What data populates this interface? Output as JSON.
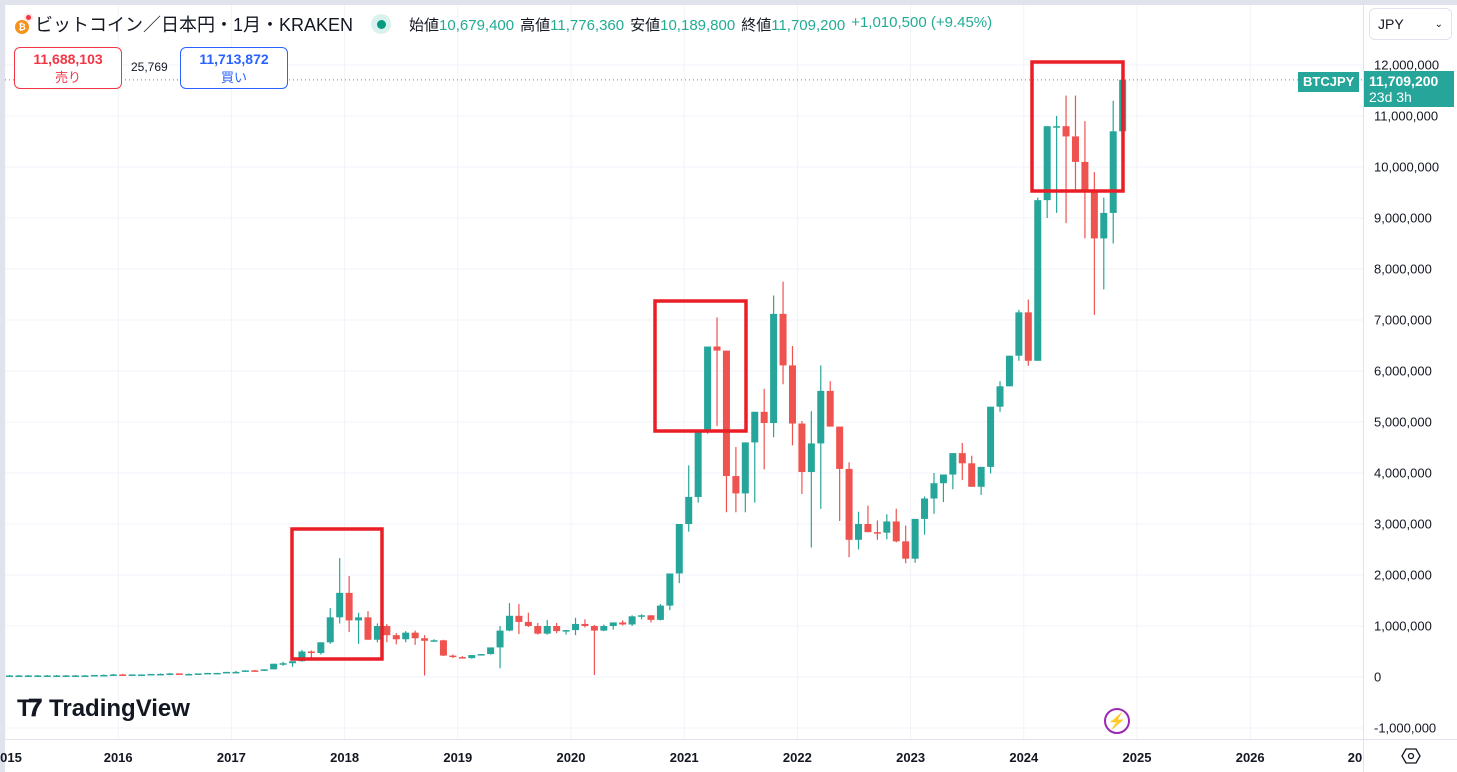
{
  "header": {
    "symbol_title": "ビットコイン／日本円・1月・KRAKEN",
    "market_status": "open",
    "ohlc": {
      "open_label": "始値",
      "open": "10,679,400",
      "high_label": "高値",
      "high": "11,776,360",
      "low_label": "安値",
      "low": "10,189,800",
      "close_label": "終値",
      "close": "11,709,200",
      "change": "+1,010,500 (+9.45%)"
    }
  },
  "trade": {
    "sell_price": "11,688,103",
    "sell_label": "売り",
    "spread": "25,769",
    "buy_price": "11,713,872",
    "buy_label": "買い"
  },
  "price_axis": {
    "currency": "JPY",
    "ticks": [
      "12,000,000",
      "11,000,000",
      "10,000,000",
      "9,000,000",
      "8,000,000",
      "7,000,000",
      "6,000,000",
      "5,000,000",
      "4,000,000",
      "3,000,000",
      "2,000,000",
      "1,000,000",
      "0",
      "-1,000,000"
    ],
    "last_price": "11,709,200",
    "countdown": "23d 3h",
    "symbol_tag": "BTCJPY"
  },
  "time_axis": {
    "ticks": [
      "015",
      "2016",
      "2017",
      "2018",
      "2019",
      "2020",
      "2021",
      "2022",
      "2023",
      "2024",
      "2025",
      "2026",
      "20"
    ]
  },
  "branding": {
    "logo_text": "TradingView"
  },
  "colors": {
    "up": "#26a69a",
    "down": "#ef5350",
    "highlight_box": "#e91e26",
    "accent_purple": "#9c27b0"
  },
  "chart_data": {
    "type": "candlestick",
    "title": "ビットコイン／日本円・1月・KRAKEN (BTCJPY monthly)",
    "xlabel": "",
    "ylabel": "JPY",
    "ylim": [
      -1000000,
      12500000
    ],
    "grid": true,
    "unit_note": "OHLC values in millions of JPY, estimated from pixels",
    "start": "2015-01",
    "candles": [
      [
        0.03,
        0.04,
        0.02,
        0.03
      ],
      [
        0.03,
        0.04,
        0.02,
        0.03
      ],
      [
        0.03,
        0.04,
        0.02,
        0.03
      ],
      [
        0.03,
        0.04,
        0.02,
        0.03
      ],
      [
        0.03,
        0.04,
        0.02,
        0.03
      ],
      [
        0.03,
        0.04,
        0.02,
        0.03
      ],
      [
        0.03,
        0.04,
        0.02,
        0.03
      ],
      [
        0.03,
        0.04,
        0.02,
        0.03
      ],
      [
        0.03,
        0.04,
        0.02,
        0.03
      ],
      [
        0.03,
        0.04,
        0.03,
        0.04
      ],
      [
        0.04,
        0.05,
        0.03,
        0.04
      ],
      [
        0.04,
        0.06,
        0.04,
        0.05
      ],
      [
        0.05,
        0.06,
        0.04,
        0.04
      ],
      [
        0.04,
        0.05,
        0.04,
        0.05
      ],
      [
        0.05,
        0.05,
        0.04,
        0.05
      ],
      [
        0.05,
        0.06,
        0.05,
        0.06
      ],
      [
        0.06,
        0.07,
        0.05,
        0.06
      ],
      [
        0.06,
        0.08,
        0.06,
        0.07
      ],
      [
        0.07,
        0.07,
        0.06,
        0.06
      ],
      [
        0.06,
        0.07,
        0.06,
        0.06
      ],
      [
        0.06,
        0.07,
        0.06,
        0.07
      ],
      [
        0.07,
        0.08,
        0.07,
        0.08
      ],
      [
        0.08,
        0.08,
        0.07,
        0.08
      ],
      [
        0.08,
        0.1,
        0.08,
        0.1
      ],
      [
        0.1,
        0.12,
        0.08,
        0.1
      ],
      [
        0.1,
        0.13,
        0.1,
        0.13
      ],
      [
        0.13,
        0.14,
        0.11,
        0.12
      ],
      [
        0.12,
        0.15,
        0.12,
        0.15
      ],
      [
        0.15,
        0.26,
        0.15,
        0.26
      ],
      [
        0.26,
        0.3,
        0.22,
        0.27
      ],
      [
        0.27,
        0.31,
        0.2,
        0.31
      ],
      [
        0.31,
        0.53,
        0.3,
        0.5
      ],
      [
        0.5,
        0.52,
        0.35,
        0.47
      ],
      [
        0.47,
        0.68,
        0.44,
        0.68
      ],
      [
        0.68,
        1.35,
        0.65,
        1.17
      ],
      [
        1.17,
        2.33,
        1.05,
        1.65
      ],
      [
        1.65,
        1.98,
        0.88,
        1.11
      ],
      [
        1.11,
        1.26,
        0.65,
        1.17
      ],
      [
        1.17,
        1.29,
        0.73,
        0.73
      ],
      [
        0.73,
        1.05,
        0.68,
        1.0
      ],
      [
        1.0,
        1.04,
        0.68,
        0.82
      ],
      [
        0.82,
        0.86,
        0.64,
        0.74
      ],
      [
        0.74,
        0.9,
        0.68,
        0.87
      ],
      [
        0.87,
        0.91,
        0.63,
        0.76
      ],
      [
        0.76,
        0.82,
        0.03,
        0.71
      ],
      [
        0.71,
        0.74,
        0.7,
        0.72
      ],
      [
        0.72,
        0.73,
        0.41,
        0.42
      ],
      [
        0.42,
        0.44,
        0.37,
        0.39
      ],
      [
        0.39,
        0.41,
        0.37,
        0.37
      ],
      [
        0.37,
        0.43,
        0.36,
        0.43
      ],
      [
        0.43,
        0.45,
        0.42,
        0.45
      ],
      [
        0.45,
        0.56,
        0.44,
        0.58
      ],
      [
        0.58,
        1.0,
        0.17,
        0.91
      ],
      [
        0.91,
        1.45,
        0.9,
        1.2
      ],
      [
        1.2,
        1.43,
        0.84,
        1.08
      ],
      [
        1.08,
        1.26,
        0.98,
        1.0
      ],
      [
        1.0,
        1.06,
        0.83,
        0.85
      ],
      [
        0.85,
        1.12,
        0.83,
        1.0
      ],
      [
        1.0,
        1.06,
        0.86,
        0.9
      ],
      [
        0.9,
        0.92,
        0.83,
        0.92
      ],
      [
        0.92,
        1.16,
        0.82,
        1.04
      ],
      [
        1.04,
        1.13,
        0.97,
        1.0
      ],
      [
        1.0,
        1.02,
        0.04,
        0.91
      ],
      [
        0.91,
        1.03,
        0.9,
        1.0
      ],
      [
        1.0,
        1.04,
        0.93,
        1.07
      ],
      [
        1.07,
        1.11,
        1.01,
        1.03
      ],
      [
        1.03,
        1.21,
        1.0,
        1.19
      ],
      [
        1.19,
        1.23,
        1.13,
        1.21
      ],
      [
        1.21,
        1.2,
        1.07,
        1.12
      ],
      [
        1.12,
        1.43,
        1.11,
        1.4
      ],
      [
        1.4,
        2.0,
        1.31,
        2.03
      ],
      [
        2.03,
        3.0,
        1.84,
        3.0
      ],
      [
        3.0,
        4.15,
        2.85,
        3.53
      ],
      [
        3.53,
        4.8,
        3.42,
        4.8
      ],
      [
        4.8,
        6.42,
        4.77,
        6.48
      ],
      [
        6.48,
        7.05,
        4.92,
        6.4
      ],
      [
        6.4,
        6.3,
        3.23,
        3.94
      ],
      [
        3.94,
        4.51,
        3.23,
        3.6
      ],
      [
        3.6,
        4.6,
        3.23,
        4.6
      ],
      [
        4.6,
        5.16,
        3.42,
        5.2
      ],
      [
        5.2,
        5.65,
        4.07,
        4.98
      ],
      [
        4.98,
        7.48,
        4.7,
        7.12
      ],
      [
        7.12,
        7.75,
        5.74,
        6.11
      ],
      [
        6.11,
        6.49,
        4.54,
        4.97
      ],
      [
        4.97,
        5.02,
        3.59,
        4.02
      ],
      [
        4.02,
        5.21,
        2.54,
        4.58
      ],
      [
        4.58,
        6.11,
        3.3,
        5.61
      ],
      [
        5.61,
        5.8,
        4.93,
        4.91
      ],
      [
        4.91,
        4.71,
        3.06,
        4.08
      ],
      [
        4.08,
        4.21,
        2.35,
        2.69
      ],
      [
        2.69,
        3.24,
        2.5,
        3.0
      ],
      [
        3.0,
        3.36,
        2.85,
        2.84
      ],
      [
        2.84,
        3.07,
        2.69,
        2.83
      ],
      [
        2.83,
        3.19,
        2.7,
        3.05
      ],
      [
        3.05,
        3.3,
        2.64,
        2.66
      ],
      [
        2.66,
        2.97,
        2.23,
        2.32
      ],
      [
        2.32,
        3.09,
        2.24,
        3.1
      ],
      [
        3.1,
        3.54,
        2.79,
        3.5
      ],
      [
        3.5,
        4.0,
        3.2,
        3.8
      ],
      [
        3.8,
        3.76,
        3.43,
        3.97
      ],
      [
        3.97,
        4.39,
        3.68,
        4.39
      ],
      [
        4.39,
        4.59,
        3.86,
        4.19
      ],
      [
        4.19,
        4.34,
        3.76,
        3.73
      ],
      [
        3.73,
        4.1,
        3.57,
        4.12
      ],
      [
        4.12,
        5.29,
        3.99,
        5.3
      ],
      [
        5.3,
        5.8,
        5.2,
        5.7
      ],
      [
        5.7,
        6.3,
        5.8,
        6.3
      ],
      [
        6.3,
        7.2,
        6.2,
        7.15
      ],
      [
        7.15,
        7.4,
        6.1,
        6.2
      ],
      [
        6.2,
        9.4,
        6.2,
        9.35
      ],
      [
        9.35,
        10.8,
        9.0,
        10.8
      ],
      [
        10.8,
        11.0,
        9.1,
        10.8
      ],
      [
        10.8,
        11.4,
        8.9,
        10.6
      ],
      [
        10.6,
        11.4,
        9.5,
        10.1
      ],
      [
        10.1,
        10.9,
        8.6,
        9.5
      ],
      [
        9.5,
        9.9,
        7.1,
        8.6
      ],
      [
        8.6,
        9.4,
        7.6,
        9.1
      ],
      [
        9.1,
        11.3,
        8.5,
        10.7
      ],
      [
        10.7,
        11.78,
        10.19,
        11.71
      ]
    ],
    "annotations": [
      {
        "type": "rectangle",
        "color": "#e91e26",
        "range": "2017-08 to 2018-05",
        "price_range": [
          0.35,
          2.9
        ]
      },
      {
        "type": "rectangle",
        "color": "#e91e26",
        "range": "2021-02 to 2021-06",
        "price_range": [
          4.85,
          7.4
        ]
      },
      {
        "type": "rectangle",
        "color": "#e91e26",
        "range": "2024-03 to 2024-11",
        "price_range": [
          9.55,
          12.1
        ]
      }
    ]
  }
}
